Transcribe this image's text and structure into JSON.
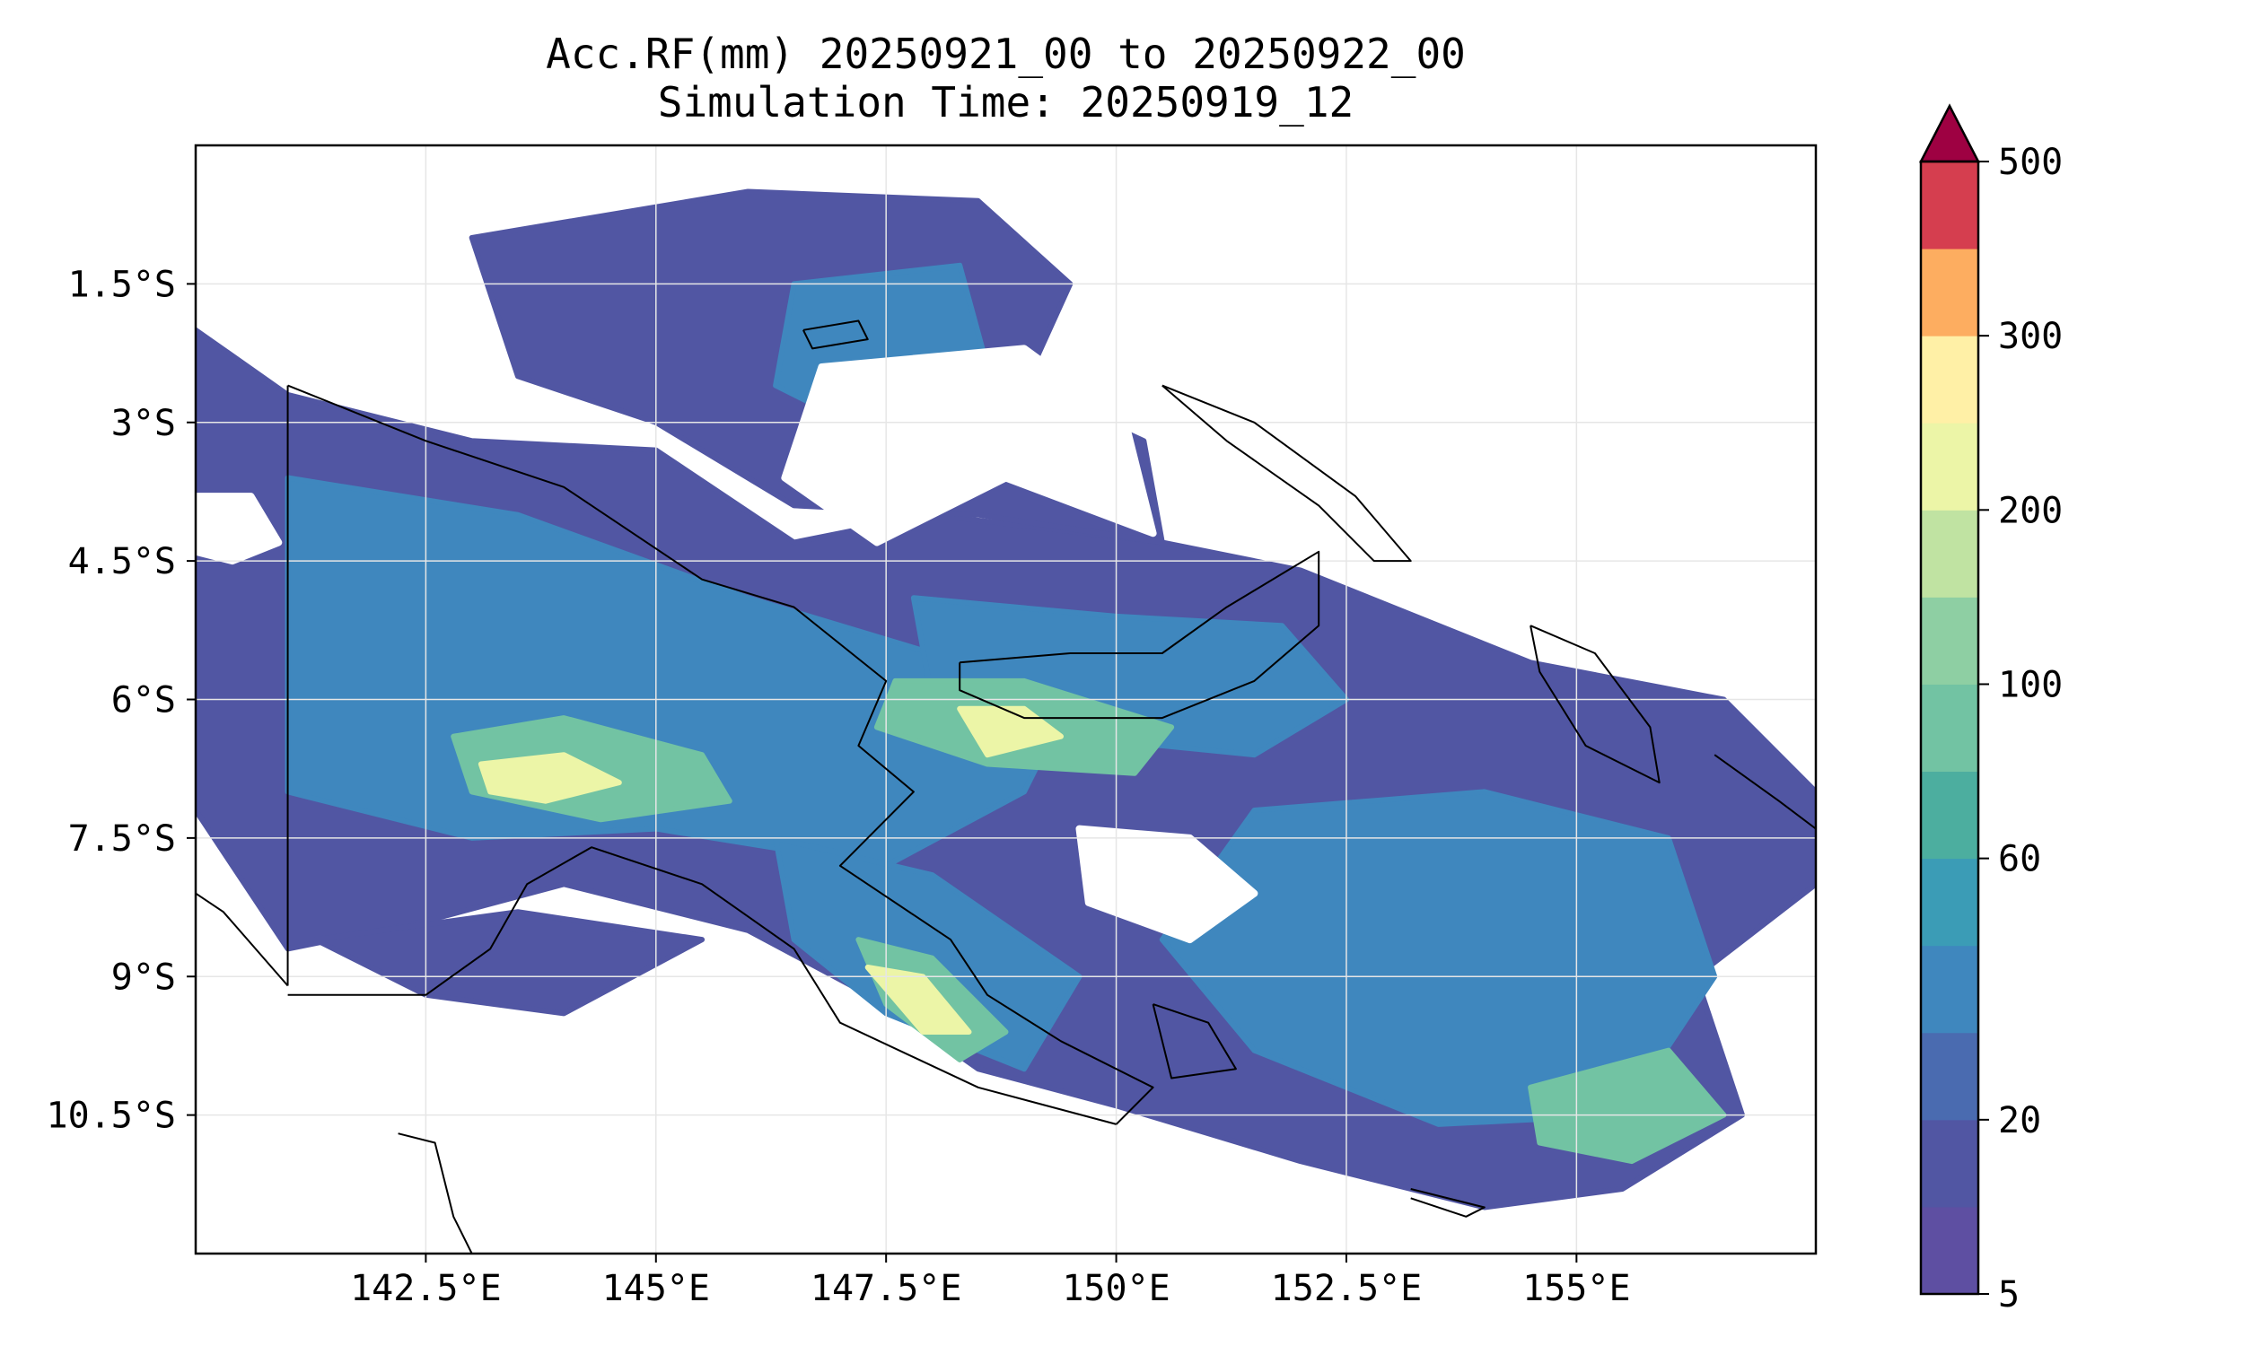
{
  "title": {
    "line1": "Acc.RF(mm) 20250921_00 to 20250922_00",
    "line2": "Simulation Time: 20250919_12"
  },
  "map": {
    "lon_range": [
      140.0,
      157.6
    ],
    "lat_range": [
      -12.0,
      0.0
    ],
    "lon_ticks": [
      {
        "value": 142.5,
        "label": "142.5°E"
      },
      {
        "value": 145.0,
        "label": "145°E"
      },
      {
        "value": 147.5,
        "label": "147.5°E"
      },
      {
        "value": 150.0,
        "label": "150°E"
      },
      {
        "value": 152.5,
        "label": "152.5°E"
      },
      {
        "value": 155.0,
        "label": "155°E"
      }
    ],
    "lat_ticks": [
      {
        "value": -1.5,
        "label": "1.5°S"
      },
      {
        "value": -3.0,
        "label": "3°S"
      },
      {
        "value": -4.5,
        "label": "4.5°S"
      },
      {
        "value": -6.0,
        "label": "6°S"
      },
      {
        "value": -7.5,
        "label": "7.5°S"
      },
      {
        "value": -9.0,
        "label": "9°S"
      },
      {
        "value": -10.5,
        "label": "10.5°S"
      }
    ],
    "gridlines": true,
    "border_lon": 141.0,
    "rain_regions": [
      {
        "name": "new-guinea-band",
        "level": 1,
        "polygon": [
          [
            140.0,
            -2.0
          ],
          [
            141.0,
            -2.7
          ],
          [
            143.0,
            -3.2
          ],
          [
            145.0,
            -3.3
          ],
          [
            146.5,
            -4.3
          ],
          [
            148.0,
            -4.0
          ],
          [
            150.5,
            -4.3
          ],
          [
            152.0,
            -4.6
          ],
          [
            154.5,
            -5.6
          ],
          [
            156.6,
            -6.0
          ],
          [
            157.6,
            -7.0
          ],
          [
            157.6,
            -8.0
          ],
          [
            156.3,
            -9.0
          ],
          [
            156.8,
            -10.5
          ],
          [
            155.5,
            -11.3
          ],
          [
            154.0,
            -11.5
          ],
          [
            152.0,
            -11.0
          ],
          [
            150.0,
            -10.4
          ],
          [
            148.5,
            -10.0
          ],
          [
            147.5,
            -9.3
          ],
          [
            146.0,
            -8.5
          ],
          [
            144.0,
            -8.0
          ],
          [
            142.5,
            -8.4
          ],
          [
            141.0,
            -8.7
          ],
          [
            140.0,
            -7.2
          ]
        ]
      },
      {
        "name": "bismarck-sea-band",
        "level": 1,
        "polygon": [
          [
            143.0,
            -1.0
          ],
          [
            146.0,
            -0.5
          ],
          [
            148.5,
            -0.6
          ],
          [
            149.5,
            -1.5
          ],
          [
            149.0,
            -2.6
          ],
          [
            150.3,
            -3.2
          ],
          [
            150.5,
            -4.3
          ],
          [
            148.5,
            -4.0
          ],
          [
            146.5,
            -3.9
          ],
          [
            145.0,
            -3.0
          ],
          [
            143.5,
            -2.5
          ]
        ]
      },
      {
        "name": "south-coast-fringe",
        "level": 1,
        "polygon": [
          [
            141.3,
            -8.6
          ],
          [
            143.5,
            -8.3
          ],
          [
            145.5,
            -8.6
          ],
          [
            144.0,
            -9.4
          ],
          [
            142.5,
            -9.2
          ]
        ]
      },
      {
        "name": "highlands-core",
        "level": 2,
        "polygon": [
          [
            141.0,
            -3.6
          ],
          [
            143.5,
            -4.0
          ],
          [
            146.0,
            -4.9
          ],
          [
            148.0,
            -5.5
          ],
          [
            149.5,
            -6.0
          ],
          [
            149.0,
            -7.0
          ],
          [
            147.5,
            -7.8
          ],
          [
            145.0,
            -7.4
          ],
          [
            143.0,
            -7.5
          ],
          [
            141.0,
            -7.0
          ]
        ]
      },
      {
        "name": "new-britain-core",
        "level": 2,
        "polygon": [
          [
            147.8,
            -4.9
          ],
          [
            150.0,
            -5.1
          ],
          [
            151.8,
            -5.2
          ],
          [
            152.5,
            -6.0
          ],
          [
            151.5,
            -6.6
          ],
          [
            149.5,
            -6.4
          ],
          [
            148.0,
            -6.0
          ]
        ]
      },
      {
        "name": "east-core",
        "level": 2,
        "polygon": [
          [
            151.5,
            -7.2
          ],
          [
            154.0,
            -7.0
          ],
          [
            156.0,
            -7.5
          ],
          [
            156.5,
            -9.0
          ],
          [
            155.5,
            -10.5
          ],
          [
            153.5,
            -10.6
          ],
          [
            151.5,
            -9.8
          ],
          [
            150.5,
            -8.6
          ]
        ]
      },
      {
        "name": "owen-stanley-core",
        "level": 2,
        "polygon": [
          [
            146.3,
            -7.5
          ],
          [
            148.0,
            -7.9
          ],
          [
            149.6,
            -9.0
          ],
          [
            149.0,
            -10.0
          ],
          [
            147.5,
            -9.4
          ],
          [
            146.5,
            -8.6
          ]
        ]
      },
      {
        "name": "north-blob-core",
        "level": 2,
        "polygon": [
          [
            146.5,
            -1.5
          ],
          [
            148.3,
            -1.3
          ],
          [
            148.6,
            -2.4
          ],
          [
            147.5,
            -3.2
          ],
          [
            146.3,
            -2.6
          ]
        ]
      },
      {
        "name": "highlands-peak",
        "level": 3,
        "polygon": [
          [
            142.8,
            -6.4
          ],
          [
            144.0,
            -6.2
          ],
          [
            145.5,
            -6.6
          ],
          [
            145.8,
            -7.1
          ],
          [
            144.4,
            -7.3
          ],
          [
            143.0,
            -7.0
          ]
        ]
      },
      {
        "name": "markham-peak",
        "level": 3,
        "polygon": [
          [
            147.6,
            -5.8
          ],
          [
            149.0,
            -5.8
          ],
          [
            150.6,
            -6.3
          ],
          [
            150.2,
            -6.8
          ],
          [
            148.6,
            -6.7
          ],
          [
            147.4,
            -6.3
          ]
        ]
      },
      {
        "name": "owen-stanley-peak",
        "level": 3,
        "polygon": [
          [
            147.2,
            -8.6
          ],
          [
            148.0,
            -8.8
          ],
          [
            148.8,
            -9.6
          ],
          [
            148.3,
            -9.9
          ],
          [
            147.5,
            -9.3
          ]
        ]
      },
      {
        "name": "southeast-peak",
        "level": 3,
        "polygon": [
          [
            154.5,
            -10.2
          ],
          [
            156.0,
            -9.8
          ],
          [
            156.6,
            -10.5
          ],
          [
            155.6,
            -11.0
          ],
          [
            154.6,
            -10.8
          ]
        ]
      },
      {
        "name": "highlands-max",
        "level": 4,
        "polygon": [
          [
            143.1,
            -6.7
          ],
          [
            144.0,
            -6.6
          ],
          [
            144.6,
            -6.9
          ],
          [
            143.8,
            -7.1
          ],
          [
            143.2,
            -7.0
          ]
        ]
      },
      {
        "name": "markham-max",
        "level": 4,
        "polygon": [
          [
            148.3,
            -6.1
          ],
          [
            149.0,
            -6.1
          ],
          [
            149.4,
            -6.4
          ],
          [
            148.6,
            -6.6
          ]
        ]
      },
      {
        "name": "owen-stanley-max",
        "level": 4,
        "polygon": [
          [
            147.3,
            -8.9
          ],
          [
            147.9,
            -9.0
          ],
          [
            148.4,
            -9.6
          ],
          [
            147.9,
            -9.6
          ]
        ]
      }
    ],
    "dry_gaps": [
      {
        "name": "bismarck-sea-gap",
        "polygon": [
          [
            146.8,
            -2.4
          ],
          [
            149.0,
            -2.2
          ],
          [
            150.1,
            -3.0
          ],
          [
            150.4,
            -4.2
          ],
          [
            148.8,
            -3.6
          ],
          [
            147.4,
            -4.3
          ],
          [
            146.4,
            -3.6
          ]
        ]
      },
      {
        "name": "west-gap",
        "polygon": [
          [
            140.0,
            -3.8
          ],
          [
            140.6,
            -3.8
          ],
          [
            140.9,
            -4.3
          ],
          [
            140.4,
            -4.5
          ],
          [
            140.0,
            -4.4
          ]
        ]
      },
      {
        "name": "coral-sea-gap",
        "polygon": [
          [
            149.6,
            -7.4
          ],
          [
            150.8,
            -7.5
          ],
          [
            151.5,
            -8.1
          ],
          [
            150.8,
            -8.6
          ],
          [
            149.7,
            -8.2
          ]
        ]
      }
    ],
    "coastlines": [
      {
        "name": "new-guinea-north-coast",
        "points": [
          [
            141.0,
            -2.6
          ],
          [
            142.5,
            -3.2
          ],
          [
            144.0,
            -3.7
          ],
          [
            145.5,
            -4.7
          ],
          [
            146.5,
            -5.0
          ],
          [
            147.5,
            -5.8
          ],
          [
            147.2,
            -6.5
          ],
          [
            147.8,
            -7.0
          ],
          [
            147.0,
            -7.8
          ],
          [
            148.2,
            -8.6
          ],
          [
            148.6,
            -9.2
          ],
          [
            149.4,
            -9.7
          ],
          [
            150.4,
            -10.2
          ],
          [
            150.0,
            -10.6
          ]
        ]
      },
      {
        "name": "new-guinea-south-coast",
        "points": [
          [
            150.0,
            -10.6
          ],
          [
            148.5,
            -10.2
          ],
          [
            147.0,
            -9.5
          ],
          [
            146.5,
            -8.7
          ],
          [
            145.5,
            -8.0
          ],
          [
            144.3,
            -7.6
          ],
          [
            143.6,
            -8.0
          ],
          [
            143.2,
            -8.7
          ],
          [
            142.5,
            -9.2
          ],
          [
            141.0,
            -9.2
          ]
        ]
      },
      {
        "name": "west-papua-south-coast",
        "points": [
          [
            141.0,
            -9.1
          ],
          [
            140.3,
            -8.3
          ],
          [
            140.0,
            -8.1
          ]
        ]
      },
      {
        "name": "new-britain",
        "points": [
          [
            148.3,
            -5.6
          ],
          [
            149.5,
            -5.5
          ],
          [
            150.5,
            -5.5
          ],
          [
            151.2,
            -5.0
          ],
          [
            152.2,
            -4.4
          ],
          [
            152.2,
            -5.2
          ],
          [
            151.5,
            -5.8
          ],
          [
            150.5,
            -6.2
          ],
          [
            149.0,
            -6.2
          ],
          [
            148.3,
            -5.9
          ],
          [
            148.3,
            -5.6
          ]
        ]
      },
      {
        "name": "new-ireland",
        "points": [
          [
            150.5,
            -2.6
          ],
          [
            151.5,
            -3.0
          ],
          [
            152.6,
            -3.8
          ],
          [
            153.2,
            -4.5
          ],
          [
            152.8,
            -4.5
          ],
          [
            152.2,
            -3.9
          ],
          [
            151.2,
            -3.2
          ],
          [
            150.5,
            -2.6
          ]
        ]
      },
      {
        "name": "manus",
        "points": [
          [
            146.6,
            -2.0
          ],
          [
            147.2,
            -1.9
          ],
          [
            147.3,
            -2.1
          ],
          [
            146.7,
            -2.2
          ],
          [
            146.6,
            -2.0
          ]
        ]
      },
      {
        "name": "bougainville",
        "points": [
          [
            154.5,
            -5.2
          ],
          [
            155.2,
            -5.5
          ],
          [
            155.8,
            -6.3
          ],
          [
            155.9,
            -6.9
          ],
          [
            155.1,
            -6.5
          ],
          [
            154.6,
            -5.7
          ],
          [
            154.5,
            -5.2
          ]
        ]
      },
      {
        "name": "solomons-north",
        "points": [
          [
            156.5,
            -6.6
          ],
          [
            157.2,
            -7.1
          ],
          [
            157.6,
            -7.4
          ]
        ]
      },
      {
        "name": "cape-york",
        "points": [
          [
            142.2,
            -10.7
          ],
          [
            142.6,
            -10.8
          ],
          [
            142.8,
            -11.6
          ],
          [
            143.0,
            -12.0
          ]
        ]
      },
      {
        "name": "dentrecasteaux",
        "points": [
          [
            150.4,
            -9.3
          ],
          [
            151.0,
            -9.5
          ],
          [
            151.3,
            -10.0
          ],
          [
            150.6,
            -10.1
          ],
          [
            150.4,
            -9.3
          ]
        ]
      },
      {
        "name": "louisiade",
        "points": [
          [
            153.2,
            -11.3
          ],
          [
            154.0,
            -11.5
          ],
          [
            153.8,
            -11.6
          ],
          [
            153.2,
            -11.4
          ]
        ]
      }
    ]
  },
  "colorbar": {
    "levels": [
      5,
      10,
      20,
      40,
      50,
      60,
      80,
      100,
      150,
      200,
      250,
      300,
      350,
      500
    ],
    "tick_labels": [
      "5",
      "20",
      "60",
      "100",
      "200",
      "300",
      "500"
    ],
    "tick_values": [
      5,
      20,
      60,
      100,
      200,
      300,
      500
    ],
    "colors": [
      "#5e4fa2",
      "#5156a3",
      "#4a6bb0",
      "#3f87be",
      "#3b9cb6",
      "#4cae9f",
      "#72c3a3",
      "#8ecfa3",
      "#c0e3a2",
      "#ecf5a7",
      "#fff0a6",
      "#fdad60",
      "#d53e4f",
      "#9e0142"
    ],
    "extend": "max"
  }
}
